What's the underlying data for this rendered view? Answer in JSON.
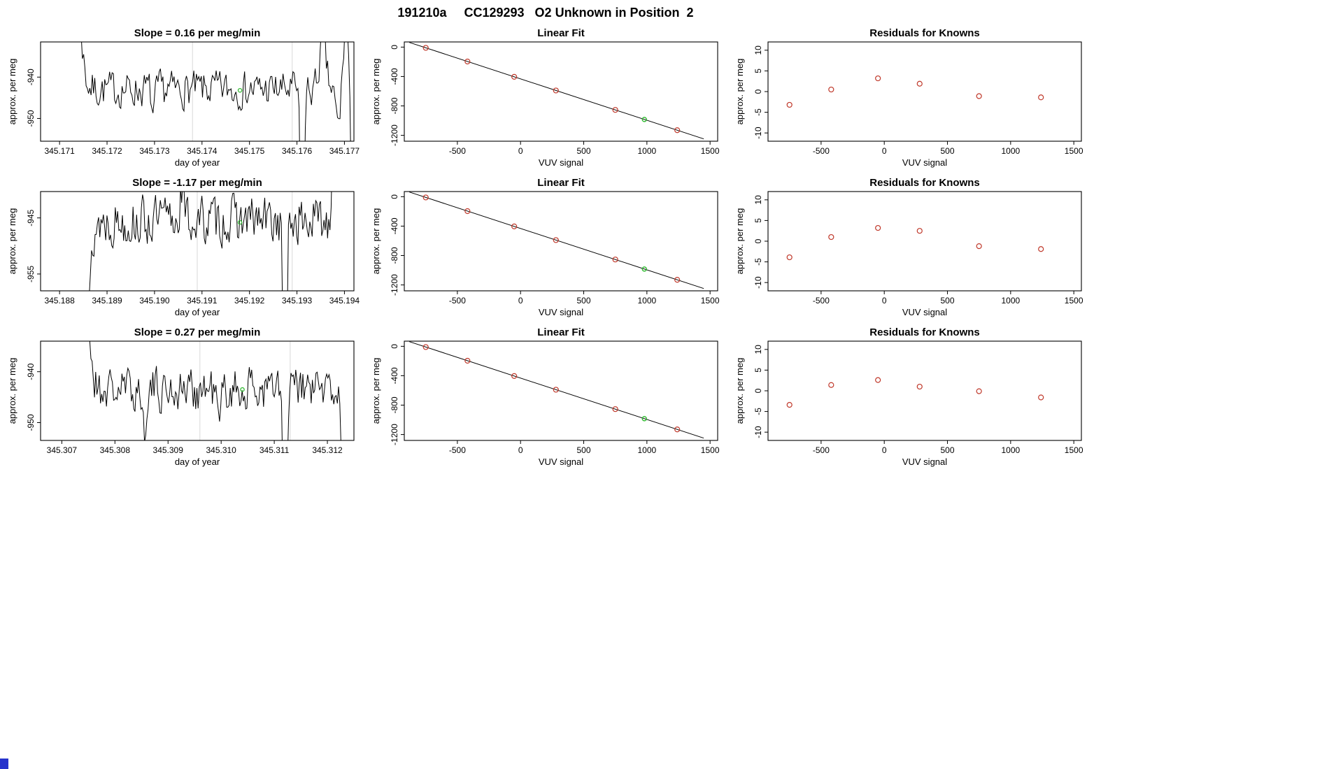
{
  "header": {
    "title": "191210a     CC129293   O2 Unknown in Position  2"
  },
  "colors": {
    "background": "#ffffff",
    "series_line": "#000000",
    "fit_line": "#000000",
    "known_point": "#c0392b",
    "unknown_point": "#33bb33",
    "vline": "#d8d8d8",
    "axis": "#000000",
    "corner_marker": "#2633cc"
  },
  "chart_data": [
    {
      "type": "timeseries",
      "title": "Slope =  0.16  per meg/min",
      "xlabel": "day of year",
      "ylabel": "approx. per meg",
      "xlim": [
        345.1706,
        345.1772
      ],
      "ylim": [
        -955.5,
        -931.5
      ],
      "xticks": [
        {
          "v": 345.171,
          "l": "345.171"
        },
        {
          "v": 345.172,
          "l": "345.172"
        },
        {
          "v": 345.173,
          "l": "345.173"
        },
        {
          "v": 345.174,
          "l": "345.174"
        },
        {
          "v": 345.175,
          "l": "345.175"
        },
        {
          "v": 345.176,
          "l": "345.176"
        },
        {
          "v": 345.177,
          "l": "345.177"
        }
      ],
      "yticks": [
        {
          "v": -940,
          "l": "-940"
        },
        {
          "v": -950,
          "l": "-950"
        }
      ],
      "vlines": [
        345.1738,
        345.1759
      ],
      "green_point": {
        "x": 345.1748,
        "y": -943.2
      },
      "series": {
        "seed": 7,
        "n": 230,
        "t0": 0.09,
        "t1": 0.995,
        "baseline": -943,
        "ar": 0.3,
        "step": 4,
        "bumps": [
          {
            "f": 0.09,
            "w": 0.022,
            "a": 75
          },
          {
            "f": 0.36,
            "w": 0.005,
            "a": -7
          },
          {
            "f": 0.835,
            "w": 0.005,
            "a": -60
          },
          {
            "f": 0.9,
            "w": 0.01,
            "a": 12
          },
          {
            "f": 0.95,
            "w": 0.008,
            "a": -9
          },
          {
            "f": 0.975,
            "w": 0.009,
            "a": 16
          },
          {
            "f": 0.998,
            "w": 0.006,
            "a": -60
          }
        ]
      }
    },
    {
      "type": "fit",
      "title": "Linear Fit",
      "xlabel": "VUV signal",
      "ylabel": "approx. per meg",
      "xlim": [
        -920,
        1560
      ],
      "ylim": [
        -1280,
        70
      ],
      "xticks": [
        {
          "v": -500,
          "l": "-500"
        },
        {
          "v": 0,
          "l": "0"
        },
        {
          "v": 500,
          "l": "500"
        },
        {
          "v": 1000,
          "l": "1000"
        },
        {
          "v": 1500,
          "l": "1500"
        }
      ],
      "yticks": [
        {
          "v": 0,
          "l": "0"
        },
        {
          "v": -400,
          "l": "-400"
        },
        {
          "v": -800,
          "l": "-800"
        },
        {
          "v": -1200,
          "l": "-1200"
        }
      ],
      "fit": {
        "intercept": -432,
        "slope": -0.563,
        "x_start": -880,
        "x_end": 1450
      },
      "points": [
        {
          "x": -750,
          "y": -10
        },
        {
          "x": -420,
          "y": -196
        },
        {
          "x": -50,
          "y": -404
        },
        {
          "x": 280,
          "y": -590
        },
        {
          "x": 750,
          "y": -854
        },
        {
          "x": 1240,
          "y": -1130
        }
      ],
      "green_point": {
        "x": 980,
        "y": -984
      }
    },
    {
      "type": "residuals",
      "title": "Residuals for Knowns",
      "xlabel": "VUV signal",
      "ylabel": "approx. per meg",
      "xlim": [
        -920,
        1560
      ],
      "ylim": [
        -12,
        12
      ],
      "xticks": [
        {
          "v": -500,
          "l": "-500"
        },
        {
          "v": 0,
          "l": "0"
        },
        {
          "v": 500,
          "l": "500"
        },
        {
          "v": 1000,
          "l": "1000"
        },
        {
          "v": 1500,
          "l": "1500"
        }
      ],
      "yticks": [
        {
          "v": -10,
          "l": "-10"
        },
        {
          "v": -5,
          "l": "-5"
        },
        {
          "v": 0,
          "l": "0"
        },
        {
          "v": 5,
          "l": "5"
        },
        {
          "v": 10,
          "l": "10"
        }
      ],
      "points": [
        {
          "x": -750,
          "y": -3.2
        },
        {
          "x": -420,
          "y": 0.5
        },
        {
          "x": -50,
          "y": 3.2
        },
        {
          "x": 280,
          "y": 1.9
        },
        {
          "x": 750,
          "y": -1.1
        },
        {
          "x": 1240,
          "y": -1.4
        }
      ]
    },
    {
      "type": "timeseries",
      "title": "Slope =  -1.17  per meg/min",
      "xlabel": "day of year",
      "ylabel": "approx. per meg",
      "xlim": [
        345.1876,
        345.1942
      ],
      "ylim": [
        -958,
        -940.3
      ],
      "xticks": [
        {
          "v": 345.188,
          "l": "345.188"
        },
        {
          "v": 345.189,
          "l": "345.189"
        },
        {
          "v": 345.19,
          "l": "345.190"
        },
        {
          "v": 345.191,
          "l": "345.191"
        },
        {
          "v": 345.192,
          "l": "345.192"
        },
        {
          "v": 345.193,
          "l": "345.193"
        },
        {
          "v": 345.194,
          "l": "345.194"
        }
      ],
      "yticks": [
        {
          "v": -945,
          "l": "-945"
        },
        {
          "v": -955,
          "l": "-955"
        }
      ],
      "vlines": [
        345.1909,
        345.1929
      ],
      "green_point": {
        "x": 345.1918,
        "y": -945.8
      },
      "series": {
        "seed": 13,
        "n": 220,
        "t0": 0.121,
        "t1": 0.95,
        "baseline": -945.5,
        "ar": 0.3,
        "step": 4,
        "bumps": [
          {
            "f": 0.121,
            "w": 0.02,
            "a": -70
          },
          {
            "f": 0.45,
            "w": 0.006,
            "a": 6
          },
          {
            "f": 0.78,
            "w": 0.005,
            "a": -60
          },
          {
            "f": 0.95,
            "w": 0.01,
            "a": 75
          }
        ]
      }
    },
    {
      "type": "fit",
      "title": "Linear Fit",
      "xlabel": "VUV signal",
      "ylabel": "approx. per meg",
      "xlim": [
        -920,
        1560
      ],
      "ylim": [
        -1280,
        70
      ],
      "xticks": [
        {
          "v": -500,
          "l": "-500"
        },
        {
          "v": 0,
          "l": "0"
        },
        {
          "v": 500,
          "l": "500"
        },
        {
          "v": 1000,
          "l": "1000"
        },
        {
          "v": 1500,
          "l": "1500"
        }
      ],
      "yticks": [
        {
          "v": 0,
          "l": "0"
        },
        {
          "v": -400,
          "l": "-400"
        },
        {
          "v": -800,
          "l": "-800"
        },
        {
          "v": -1200,
          "l": "-1200"
        }
      ],
      "fit": {
        "intercept": -432,
        "slope": -0.563,
        "x_start": -880,
        "x_end": 1450
      },
      "points": [
        {
          "x": -750,
          "y": -10
        },
        {
          "x": -420,
          "y": -196
        },
        {
          "x": -50,
          "y": -404
        },
        {
          "x": 280,
          "y": -590
        },
        {
          "x": 750,
          "y": -854
        },
        {
          "x": 1240,
          "y": -1130
        }
      ],
      "green_point": {
        "x": 980,
        "y": -984
      }
    },
    {
      "type": "residuals",
      "title": "Residuals for Knowns",
      "xlabel": "VUV signal",
      "ylabel": "approx. per meg",
      "xlim": [
        -920,
        1560
      ],
      "ylim": [
        -12,
        12
      ],
      "xticks": [
        {
          "v": -500,
          "l": "-500"
        },
        {
          "v": 0,
          "l": "0"
        },
        {
          "v": 500,
          "l": "500"
        },
        {
          "v": 1000,
          "l": "1000"
        },
        {
          "v": 1500,
          "l": "1500"
        }
      ],
      "yticks": [
        {
          "v": -10,
          "l": "-10"
        },
        {
          "v": -5,
          "l": "-5"
        },
        {
          "v": 0,
          "l": "0"
        },
        {
          "v": 5,
          "l": "5"
        },
        {
          "v": 10,
          "l": "10"
        }
      ],
      "points": [
        {
          "x": -750,
          "y": -3.9
        },
        {
          "x": -420,
          "y": 1.0
        },
        {
          "x": -50,
          "y": 3.2
        },
        {
          "x": 280,
          "y": 2.5
        },
        {
          "x": 750,
          "y": -1.2
        },
        {
          "x": 1240,
          "y": -1.9
        }
      ]
    },
    {
      "type": "timeseries",
      "title": "Slope =  0.27  per meg/min",
      "xlabel": "day of year",
      "ylabel": "approx. per meg",
      "xlim": [
        345.3066,
        345.3125
      ],
      "ylim": [
        -953.5,
        -934
      ],
      "xticks": [
        {
          "v": 345.307,
          "l": "345.307"
        },
        {
          "v": 345.308,
          "l": "345.308"
        },
        {
          "v": 345.309,
          "l": "345.309"
        },
        {
          "v": 345.31,
          "l": "345.310"
        },
        {
          "v": 345.311,
          "l": "345.311"
        },
        {
          "v": 345.312,
          "l": "345.312"
        }
      ],
      "yticks": [
        {
          "v": -940,
          "l": "-940"
        },
        {
          "v": -950,
          "l": "-950"
        }
      ],
      "vlines": [
        345.3096,
        345.3113
      ],
      "green_point": {
        "x": 345.3104,
        "y": -943.5
      },
      "series": {
        "seed": 21,
        "n": 225,
        "t0": 0.119,
        "t1": 0.97,
        "baseline": -943.5,
        "ar": 0.3,
        "step": 4,
        "bumps": [
          {
            "f": 0.119,
            "w": 0.02,
            "a": 70
          },
          {
            "f": 0.33,
            "w": 0.005,
            "a": -8
          },
          {
            "f": 0.57,
            "w": 0.005,
            "a": -8
          },
          {
            "f": 0.78,
            "w": 0.005,
            "a": -55
          },
          {
            "f": 0.97,
            "w": 0.007,
            "a": -45
          }
        ]
      }
    },
    {
      "type": "fit",
      "title": "Linear Fit",
      "xlabel": "VUV signal",
      "ylabel": "approx. per meg",
      "xlim": [
        -920,
        1560
      ],
      "ylim": [
        -1280,
        70
      ],
      "xticks": [
        {
          "v": -500,
          "l": "-500"
        },
        {
          "v": 0,
          "l": "0"
        },
        {
          "v": 500,
          "l": "500"
        },
        {
          "v": 1000,
          "l": "1000"
        },
        {
          "v": 1500,
          "l": "1500"
        }
      ],
      "yticks": [
        {
          "v": 0,
          "l": "0"
        },
        {
          "v": -400,
          "l": "-400"
        },
        {
          "v": -800,
          "l": "-800"
        },
        {
          "v": -1200,
          "l": "-1200"
        }
      ],
      "fit": {
        "intercept": -432,
        "slope": -0.563,
        "x_start": -880,
        "x_end": 1450
      },
      "points": [
        {
          "x": -750,
          "y": -10
        },
        {
          "x": -420,
          "y": -196
        },
        {
          "x": -50,
          "y": -404
        },
        {
          "x": 280,
          "y": -590
        },
        {
          "x": 750,
          "y": -854
        },
        {
          "x": 1240,
          "y": -1130
        }
      ],
      "green_point": {
        "x": 980,
        "y": -984
      }
    },
    {
      "type": "residuals",
      "title": "Residuals for Knowns",
      "xlabel": "VUV signal",
      "ylabel": "approx. per meg",
      "xlim": [
        -920,
        1560
      ],
      "ylim": [
        -12,
        12
      ],
      "xticks": [
        {
          "v": -500,
          "l": "-500"
        },
        {
          "v": 0,
          "l": "0"
        },
        {
          "v": 500,
          "l": "500"
        },
        {
          "v": 1000,
          "l": "1000"
        },
        {
          "v": 1500,
          "l": "1500"
        }
      ],
      "yticks": [
        {
          "v": -10,
          "l": "-10"
        },
        {
          "v": -5,
          "l": "-5"
        },
        {
          "v": 0,
          "l": "0"
        },
        {
          "v": 5,
          "l": "5"
        },
        {
          "v": 10,
          "l": "10"
        }
      ],
      "points": [
        {
          "x": -750,
          "y": -3.4
        },
        {
          "x": -420,
          "y": 1.4
        },
        {
          "x": -50,
          "y": 2.6
        },
        {
          "x": 280,
          "y": 1.0
        },
        {
          "x": 750,
          "y": -0.1
        },
        {
          "x": 1240,
          "y": -1.6
        }
      ]
    }
  ]
}
